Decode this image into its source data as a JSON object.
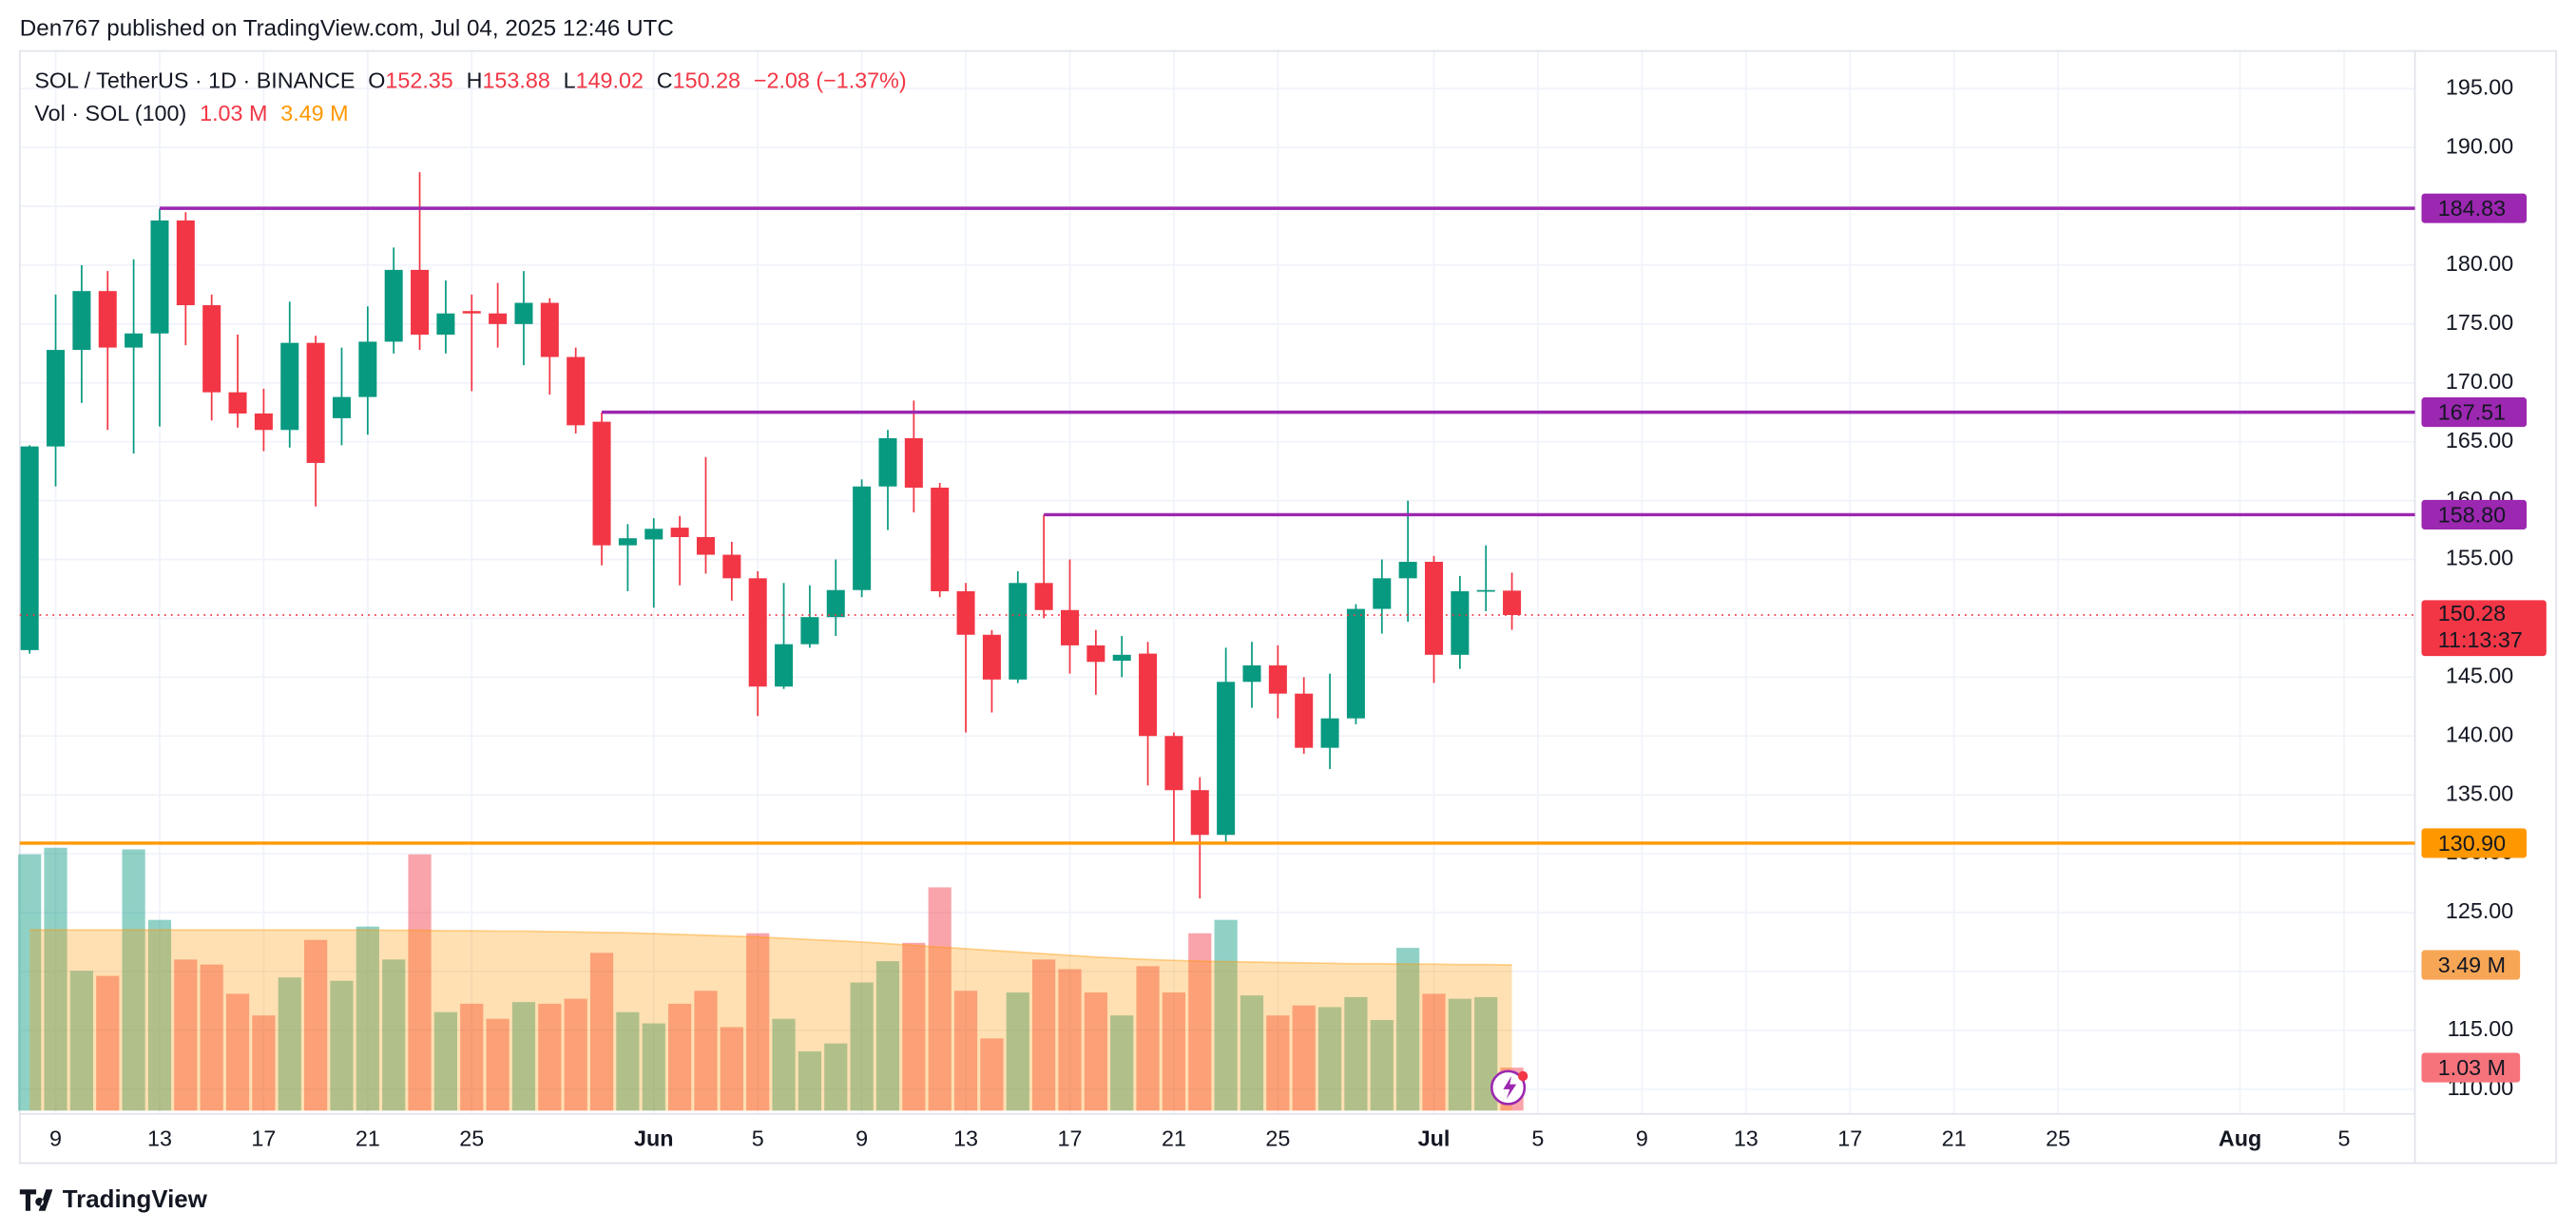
{
  "chart_data": {
    "type": "candlestick",
    "published": "Den767 published on TradingView.com, Jul 04, 2025 12:46 UTC",
    "title": "SOL / TetherUS · 1D · BINANCE",
    "brand": "TradingView",
    "up_color": "#089981",
    "down_color": "#f23645",
    "x": [
      "2025-05-08",
      "2025-05-09",
      "2025-05-10",
      "2025-05-11",
      "2025-05-12",
      "2025-05-13",
      "2025-05-14",
      "2025-05-15",
      "2025-05-16",
      "2025-05-17",
      "2025-05-18",
      "2025-05-19",
      "2025-05-20",
      "2025-05-21",
      "2025-05-22",
      "2025-05-23",
      "2025-05-24",
      "2025-05-25",
      "2025-05-26",
      "2025-05-27",
      "2025-05-28",
      "2025-05-29",
      "2025-05-30",
      "2025-05-31",
      "2025-06-01",
      "2025-06-02",
      "2025-06-03",
      "2025-06-04",
      "2025-06-05",
      "2025-06-06",
      "2025-06-07",
      "2025-06-08",
      "2025-06-09",
      "2025-06-10",
      "2025-06-11",
      "2025-06-12",
      "2025-06-13",
      "2025-06-14",
      "2025-06-15",
      "2025-06-16",
      "2025-06-17",
      "2025-06-18",
      "2025-06-19",
      "2025-06-20",
      "2025-06-21",
      "2025-06-22",
      "2025-06-23",
      "2025-06-24",
      "2025-06-25",
      "2025-06-26",
      "2025-06-27",
      "2025-06-28",
      "2025-06-29",
      "2025-06-30",
      "2025-07-01",
      "2025-07-02",
      "2025-07-03",
      "2025-07-04"
    ],
    "open": [
      147.3,
      164.6,
      172.8,
      177.8,
      173,
      174.2,
      183.8,
      176.6,
      169.2,
      167.4,
      166,
      173.4,
      167,
      168.8,
      173.5,
      179.6,
      174.1,
      176.1,
      175.9,
      175,
      176.8,
      172.2,
      166.7,
      156.2,
      156.7,
      157.7,
      156.9,
      155.4,
      153.4,
      144.2,
      147.8,
      150.1,
      152.4,
      161.2,
      165.3,
      161.1,
      152.3,
      148.6,
      144.8,
      153,
      150.7,
      147.7,
      146.4,
      147,
      140,
      135.4,
      131.6,
      144.6,
      146,
      143.6,
      139,
      141.5,
      150.8,
      153.4,
      154.8,
      146.9,
      152.3,
      152.35
    ],
    "high": [
      164.7,
      177.5,
      180,
      179.5,
      180.5,
      184.8,
      184.5,
      177.5,
      174.1,
      169.5,
      176.9,
      174,
      173,
      176.5,
      181.5,
      187.9,
      178.7,
      177.5,
      178.5,
      179.5,
      177.2,
      173,
      167.5,
      158,
      158.5,
      158.7,
      163.7,
      156.5,
      154,
      153,
      152.8,
      155,
      161.8,
      166,
      168.5,
      161.5,
      153,
      149,
      154,
      158.8,
      155,
      149,
      148.5,
      148,
      140.3,
      136.5,
      147.5,
      148,
      147.7,
      145,
      145.3,
      151.2,
      155,
      160,
      155.3,
      153.6,
      156.2,
      153.88
    ],
    "low": [
      147,
      161.2,
      168.3,
      166,
      164,
      166.3,
      173.2,
      166.8,
      166.2,
      164.2,
      164.5,
      159.5,
      164.7,
      165.6,
      172.5,
      172.8,
      172.5,
      169.3,
      173,
      171.5,
      169,
      165.7,
      154.5,
      152.3,
      150.9,
      152.8,
      153.8,
      151.5,
      141.7,
      144,
      147.5,
      148.5,
      151.8,
      157.5,
      159,
      151.8,
      140.3,
      142,
      144.5,
      150,
      145.3,
      143.5,
      145,
      135.8,
      130.9,
      126.2,
      130.8,
      142.4,
      141.5,
      138.5,
      137.2,
      141,
      148.7,
      149.7,
      144.5,
      145.7,
      150.6,
      149.02
    ],
    "close": [
      164.6,
      172.8,
      177.8,
      173,
      174.2,
      183.8,
      176.6,
      169.2,
      167.4,
      166,
      173.4,
      163.2,
      168.8,
      173.5,
      179.6,
      174.1,
      175.9,
      175.9,
      175,
      176.8,
      172.2,
      166.4,
      156.2,
      156.8,
      157.6,
      156.9,
      155.4,
      153.4,
      144.2,
      147.8,
      150.1,
      152.4,
      161.2,
      165.3,
      161.1,
      152.3,
      148.6,
      144.8,
      153,
      150.7,
      147.7,
      146.3,
      146.9,
      140,
      135.4,
      131.6,
      144.6,
      146,
      143.6,
      139,
      141.5,
      150.8,
      153.4,
      154.8,
      146.9,
      152.3,
      152.4,
      150.28
    ],
    "ylim": [
      107.9,
      198.2
    ],
    "yticks": [
      {
        "value": 110,
        "label": "110.00"
      },
      {
        "value": 115,
        "label": "115.00"
      },
      {
        "value": 120,
        "label": "120.00"
      },
      {
        "value": 125,
        "label": "125.00"
      },
      {
        "value": 130,
        "label": "130.00"
      },
      {
        "value": 135,
        "label": "135.00"
      },
      {
        "value": 140,
        "label": "140.00"
      },
      {
        "value": 145,
        "label": "145.00"
      },
      {
        "value": 150,
        "label": "150.00"
      },
      {
        "value": 155,
        "label": "155.00"
      },
      {
        "value": 160,
        "label": "160.00"
      },
      {
        "value": 165,
        "label": "165.00"
      },
      {
        "value": 170,
        "label": "170.00"
      },
      {
        "value": 175,
        "label": "175.00"
      },
      {
        "value": 180,
        "label": "180.00"
      },
      {
        "value": 185,
        "label": "185.00"
      },
      {
        "value": 190,
        "label": "190.00"
      },
      {
        "value": 195,
        "label": "195.00"
      }
    ],
    "xticks": [
      {
        "value": "2025-05-09",
        "label": "9"
      },
      {
        "value": "2025-05-13",
        "label": "13"
      },
      {
        "value": "2025-05-17",
        "label": "17"
      },
      {
        "value": "2025-05-21",
        "label": "21"
      },
      {
        "value": "2025-05-25",
        "label": "25"
      },
      {
        "value": "2025-06-01",
        "label": "Jun"
      },
      {
        "value": "2025-06-05",
        "label": "5"
      },
      {
        "value": "2025-06-09",
        "label": "9"
      },
      {
        "value": "2025-06-13",
        "label": "13"
      },
      {
        "value": "2025-06-17",
        "label": "17"
      },
      {
        "value": "2025-06-21",
        "label": "21"
      },
      {
        "value": "2025-06-25",
        "label": "25"
      },
      {
        "value": "2025-07-01",
        "label": "Jul"
      },
      {
        "value": "2025-07-05",
        "label": "5"
      },
      {
        "value": "2025-07-09",
        "label": "9"
      },
      {
        "value": "2025-07-13",
        "label": "13"
      },
      {
        "value": "2025-07-17",
        "label": "17"
      },
      {
        "value": "2025-07-21",
        "label": "21"
      },
      {
        "value": "2025-07-25",
        "label": "25"
      },
      {
        "value": "2025-08-01",
        "label": "Aug"
      },
      {
        "value": "2025-08-05",
        "label": "5"
      }
    ],
    "grid": true,
    "ohlc_legend": {
      "o": "O",
      "open": 152.35,
      "h": "H",
      "high": 153.88,
      "l": "L",
      "low": 149.02,
      "c": "C",
      "close": 150.28,
      "change": "−2.08 (−1.37%)"
    },
    "hlines": [
      {
        "value": 184.83,
        "start": "2025-05-13",
        "color": "#9c27b0"
      },
      {
        "value": 167.51,
        "start": "2025-05-30",
        "color": "#9c27b0"
      },
      {
        "value": 158.8,
        "label": "158.80",
        "start": "2025-06-16",
        "color": "#9c27b0"
      },
      {
        "value": 130.9,
        "label": "130.90",
        "start": "2025-05-08",
        "color": "#ff9800"
      }
    ],
    "last_price": {
      "value": 150.28,
      "countdown": "11:13:37"
    },
    "volume": {
      "name": "Vol · SOL (100)",
      "values": [
        6.14,
        6.3,
        3.35,
        3.23,
        6.26,
        4.57,
        3.62,
        3.5,
        2.8,
        2.28,
        3.19,
        4.09,
        3.11,
        4.41,
        3.62,
        6.14,
        2.36,
        2.56,
        2.2,
        2.6,
        2.56,
        2.68,
        3.78,
        2.36,
        2.09,
        2.56,
        2.87,
        2.0,
        4.25,
        2.2,
        1.42,
        1.61,
        3.07,
        3.58,
        4.02,
        5.35,
        2.87,
        1.73,
        2.83,
        3.62,
        3.39,
        2.83,
        2.28,
        3.46,
        2.83,
        4.25,
        4.57,
        2.76,
        2.28,
        2.52,
        2.48,
        2.72,
        2.17,
        3.9,
        2.8,
        2.68,
        2.72,
        1.03
      ],
      "ma": [
        4.33,
        4.33,
        4.33,
        4.33,
        4.33,
        4.33,
        4.33,
        4.33,
        4.33,
        4.33,
        4.33,
        4.33,
        4.33,
        4.33,
        4.32,
        4.32,
        4.31,
        4.31,
        4.3,
        4.3,
        4.29,
        4.28,
        4.27,
        4.26,
        4.24,
        4.22,
        4.2,
        4.18,
        4.16,
        4.13,
        4.1,
        4.07,
        4.04,
        4.0,
        3.96,
        3.92,
        3.88,
        3.84,
        3.8,
        3.76,
        3.72,
        3.68,
        3.65,
        3.62,
        3.6,
        3.58,
        3.57,
        3.56,
        3.55,
        3.54,
        3.53,
        3.52,
        3.52,
        3.51,
        3.51,
        3.5,
        3.5,
        3.49
      ],
      "last_label": "1.03 M",
      "ma_label": "3.49 M",
      "ma_color": "#ff9800"
    }
  }
}
